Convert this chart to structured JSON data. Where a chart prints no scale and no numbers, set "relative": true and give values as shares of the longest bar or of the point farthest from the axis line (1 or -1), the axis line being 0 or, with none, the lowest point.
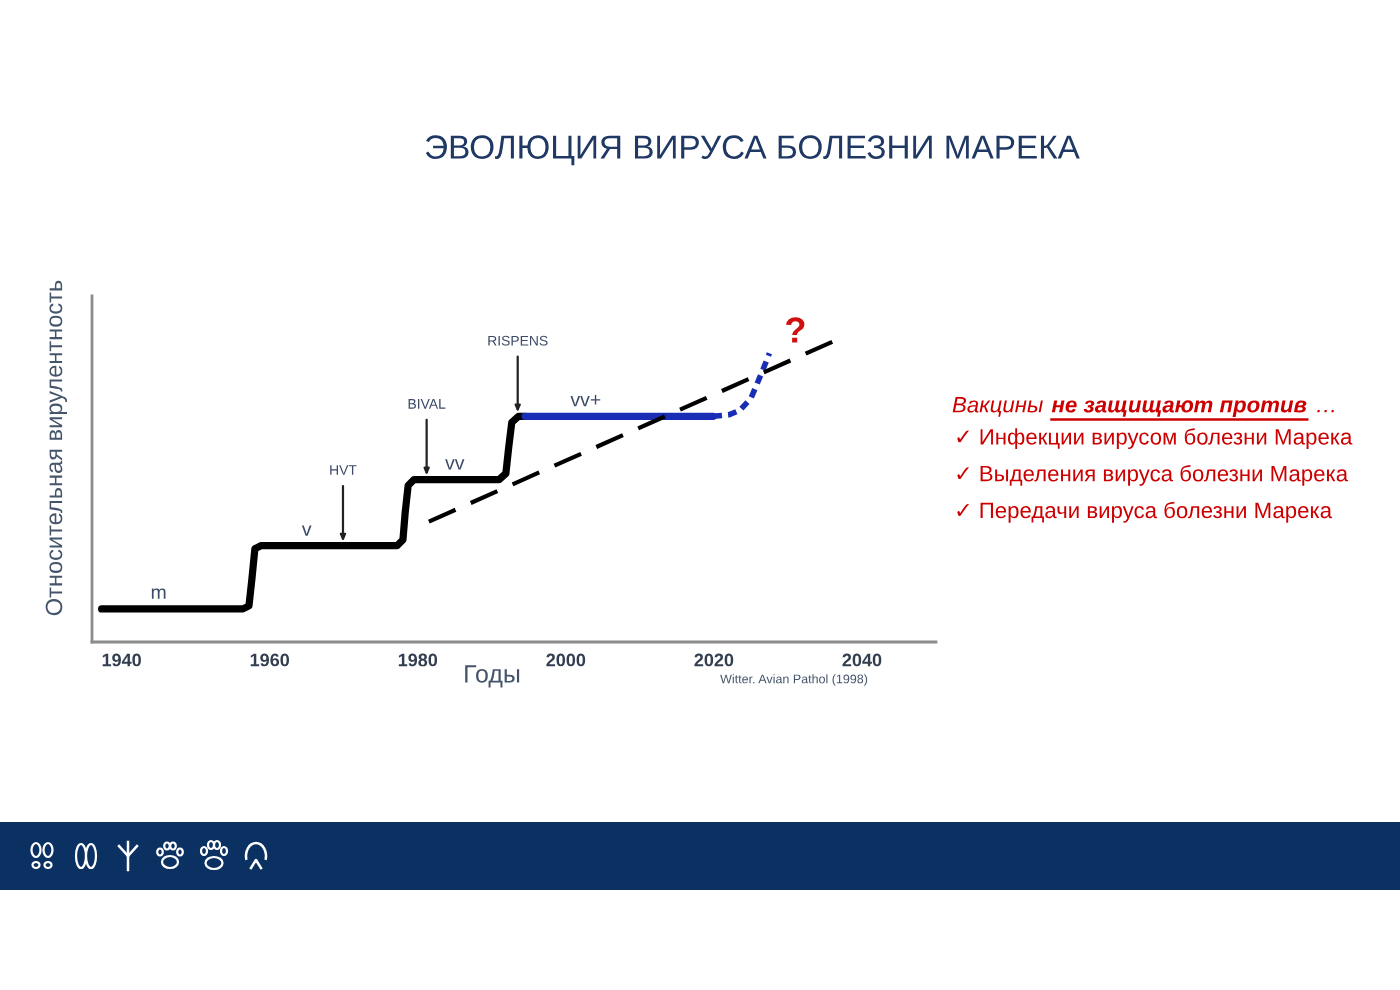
{
  "chart_data": {
    "type": "line",
    "title": "ЭВОЛЮЦИЯ ВИРУСА БОЛЕЗНИ МАРЕКА",
    "xlabel": "Годы",
    "ylabel": "Относительная вирулентность",
    "relative": true,
    "xlim": [
      1936,
      2050
    ],
    "xticks": [
      1940,
      1960,
      1980,
      2000,
      2020,
      2040
    ],
    "tick_labels": "x",
    "series": [
      {
        "color": "#000000",
        "line_style": "solid",
        "x": [
          1937.3,
          1956.4,
          1957.2,
          1957.6,
          1958.0,
          1958.8,
          1977.2,
          1978.0,
          1978.3,
          1978.7,
          1979.5,
          1991.0,
          1991.9,
          1992.3,
          1992.7,
          1993.6,
          1994.5
        ],
        "values": [
          0.11,
          0.11,
          0.12,
          0.21,
          0.31,
          0.32,
          0.32,
          0.34,
          0.43,
          0.52,
          0.54,
          0.54,
          0.56,
          0.65,
          0.73,
          0.75,
          0.75
        ]
      },
      {
        "color": "#1a2db5",
        "line_style": "solid",
        "x": [
          1994.5,
          2019.9
        ],
        "values": [
          0.75,
          0.75
        ]
      },
      {
        "color": "#1a2db5",
        "line_style": "dotted",
        "x": [
          2019.9,
          2022.0,
          2023.5,
          2025.0,
          2025.7,
          2026.7,
          2027.5
        ],
        "values": [
          0.75,
          0.755,
          0.77,
          0.81,
          0.85,
          0.91,
          0.96
        ]
      },
      {
        "color": "#000000",
        "line_style": "dashed",
        "x": [
          1981.5,
          2036.2
        ],
        "values": [
          0.4,
          1.0
        ]
      }
    ],
    "annotations": [
      {
        "text": "m",
        "x": 1945,
        "y": 0.11
      },
      {
        "text": "v",
        "x": 1965,
        "y": 0.32
      },
      {
        "text": "vv",
        "x": 1985,
        "y": 0.54
      },
      {
        "text": "vv+",
        "x": 2002.7,
        "y": 0.75
      },
      {
        "text": "HVT",
        "x": 1969.9,
        "y": 0.32
      },
      {
        "text": "BIVAL",
        "x": 1981.2,
        "y": 0.54
      },
      {
        "text": "RISPENS",
        "x": 1993.5,
        "y": 0.75
      },
      {
        "text": "?",
        "x": 2027.5,
        "y": 0.96
      },
      "Witter. Avian Pathol (1998)",
      "Вакцины",
      "не защищают против",
      "…",
      "✓ Инфекции вирусом болезни Марека",
      "✓ Выделения вируса болезни Марека",
      "✓ Передачи вируса болезни Марека"
    ]
  }
}
